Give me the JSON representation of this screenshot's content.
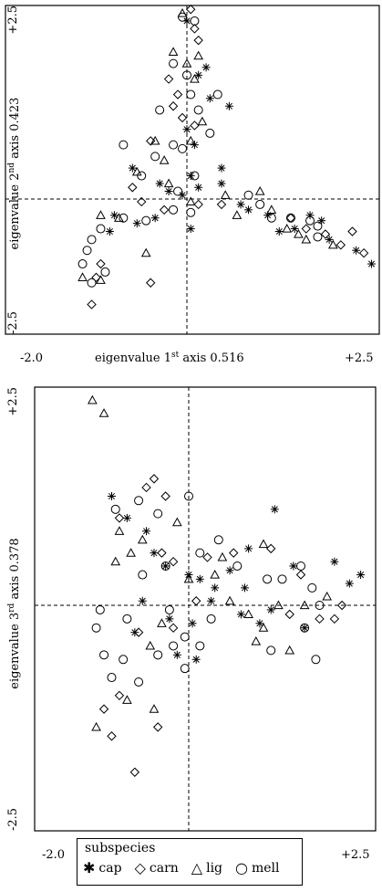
{
  "legend": {
    "title": "subspecies",
    "items": [
      {
        "symbol": "✱",
        "label": "cap"
      },
      {
        "symbol": "◇",
        "label": "carn"
      },
      {
        "symbol": "△",
        "label": "lig"
      },
      {
        "symbol": "○",
        "label": "mell"
      }
    ]
  },
  "chart_data": [
    {
      "type": "scatter",
      "xlabel": "eigenvalue 1st axis 0.516",
      "ylabel": "eigenvalue 2nd axis 0.423",
      "xlim": [
        -2.0,
        2.5
      ],
      "ylim": [
        -2.5,
        2.5
      ],
      "x_ticks": [
        "-2.0",
        "+2.5"
      ],
      "y_ticks": [
        "+2.5",
        "-2.5"
      ],
      "series": [
        {
          "name": "cap",
          "points": [
            [
              0,
              2.3
            ],
            [
              0.15,
              1.6
            ],
            [
              0.25,
              1.7
            ],
            [
              0.3,
              1.3
            ],
            [
              0.55,
              1.2
            ],
            [
              0.0,
              0.9
            ],
            [
              0.1,
              0.7
            ],
            [
              -0.6,
              0.4
            ],
            [
              -0.3,
              0.2
            ],
            [
              0.05,
              0.3
            ],
            [
              0.15,
              0.15
            ],
            [
              0.45,
              0.4
            ],
            [
              0.45,
              0.2
            ],
            [
              -0.8,
              -0.3
            ],
            [
              -0.55,
              -0.45
            ],
            [
              -0.35,
              -0.35
            ],
            [
              -0.05,
              0.05
            ],
            [
              0.05,
              -0.55
            ],
            [
              0.7,
              -0.1
            ],
            [
              0.8,
              -0.2
            ],
            [
              1.05,
              -0.3
            ],
            [
              1.2,
              -0.6
            ],
            [
              1.4,
              -0.55
            ],
            [
              1.6,
              -0.3
            ],
            [
              1.75,
              -0.4
            ],
            [
              1.85,
              -0.75
            ],
            [
              2.2,
              -0.95
            ],
            [
              2.4,
              -1.2
            ],
            [
              -0.85,
              -0.6
            ],
            [
              -0.2,
              0.1
            ]
          ]
        },
        {
          "name": "carn",
          "points": [
            [
              0.05,
              2.45
            ],
            [
              0.1,
              2.2
            ],
            [
              0.15,
              2.05
            ],
            [
              -0.2,
              1.55
            ],
            [
              -0.1,
              1.35
            ],
            [
              -0.15,
              1.2
            ],
            [
              -0.05,
              1.05
            ],
            [
              0.1,
              0.95
            ],
            [
              -0.4,
              0.75
            ],
            [
              -0.6,
              0.15
            ],
            [
              -0.5,
              -0.05
            ],
            [
              -0.25,
              -0.2
            ],
            [
              0.15,
              -0.1
            ],
            [
              0.45,
              -0.1
            ],
            [
              1.35,
              -0.35
            ],
            [
              1.55,
              -0.55
            ],
            [
              1.8,
              -0.65
            ],
            [
              2.0,
              -0.85
            ],
            [
              2.3,
              -1.0
            ],
            [
              2.15,
              -0.6
            ],
            [
              -1.0,
              -1.45
            ],
            [
              -0.4,
              -1.55
            ],
            [
              -1.05,
              -1.95
            ],
            [
              -0.95,
              -1.2
            ]
          ]
        },
        {
          "name": "lig",
          "points": [
            [
              -0.05,
              2.4
            ],
            [
              -0.15,
              1.9
            ],
            [
              0.0,
              1.75
            ],
            [
              0.1,
              1.55
            ],
            [
              0.15,
              1.85
            ],
            [
              -0.35,
              0.75
            ],
            [
              -0.55,
              0.35
            ],
            [
              -0.25,
              0.5
            ],
            [
              0.2,
              1.0
            ],
            [
              0.05,
              0.75
            ],
            [
              -0.95,
              -0.3
            ],
            [
              -0.75,
              -0.35
            ],
            [
              -0.2,
              0.2
            ],
            [
              0.05,
              -0.05
            ],
            [
              0.65,
              -0.3
            ],
            [
              0.5,
              0.05
            ],
            [
              0.95,
              0.1
            ],
            [
              1.1,
              -0.2
            ],
            [
              1.3,
              -0.55
            ],
            [
              1.45,
              -0.65
            ],
            [
              1.55,
              -0.75
            ],
            [
              1.9,
              -0.85
            ],
            [
              -0.95,
              -1.5
            ],
            [
              -1.15,
              -1.45
            ],
            [
              -0.45,
              -1.0
            ]
          ]
        },
        {
          "name": "mell",
          "points": [
            [
              -0.05,
              2.35
            ],
            [
              0.1,
              2.3
            ],
            [
              -0.15,
              1.75
            ],
            [
              0.0,
              1.6
            ],
            [
              0.05,
              1.35
            ],
            [
              -0.3,
              1.15
            ],
            [
              0.4,
              1.35
            ],
            [
              0.15,
              1.15
            ],
            [
              -0.7,
              0.7
            ],
            [
              -0.15,
              0.7
            ],
            [
              -0.05,
              0.65
            ],
            [
              -0.35,
              0.55
            ],
            [
              0.3,
              0.85
            ],
            [
              -0.5,
              0.3
            ],
            [
              0.1,
              0.3
            ],
            [
              -0.1,
              0.1
            ],
            [
              -0.7,
              -0.35
            ],
            [
              -0.45,
              -0.4
            ],
            [
              -0.15,
              -0.2
            ],
            [
              0.05,
              -0.25
            ],
            [
              0.8,
              0.05
            ],
            [
              0.95,
              -0.1
            ],
            [
              1.1,
              -0.35
            ],
            [
              1.35,
              -0.35
            ],
            [
              1.6,
              -0.4
            ],
            [
              1.7,
              -0.5
            ],
            [
              1.7,
              -0.7
            ],
            [
              -0.95,
              -0.55
            ],
            [
              -1.05,
              -0.75
            ],
            [
              -1.1,
              -0.95
            ],
            [
              -1.15,
              -1.2
            ],
            [
              -1.05,
              -1.55
            ],
            [
              -0.9,
              -1.35
            ]
          ]
        }
      ]
    },
    {
      "type": "scatter",
      "xlabel": "eigenvalue 1st axis 0.516",
      "ylabel": "eigenvalue 3rd axis 0.378",
      "xlim": [
        -2.0,
        2.5
      ],
      "ylim": [
        -2.5,
        2.5
      ],
      "x_ticks": [
        "-2.0",
        "+2.5"
      ],
      "y_ticks": [
        "+2.5",
        "-2.5"
      ],
      "series": [
        {
          "name": "cap",
          "points": [
            [
              -1.0,
              1.25
            ],
            [
              -0.8,
              1.0
            ],
            [
              -0.55,
              0.85
            ],
            [
              -0.45,
              0.6
            ],
            [
              -0.3,
              0.45
            ],
            [
              0.0,
              0.35
            ],
            [
              0.15,
              0.3
            ],
            [
              0.35,
              0.2
            ],
            [
              0.55,
              0.4
            ],
            [
              0.75,
              0.2
            ],
            [
              1.15,
              1.1
            ],
            [
              1.4,
              0.45
            ],
            [
              1.95,
              0.5
            ],
            [
              2.15,
              0.25
            ],
            [
              2.3,
              0.35
            ],
            [
              0.8,
              0.65
            ],
            [
              -0.7,
              -0.3
            ],
            [
              -0.6,
              0.05
            ],
            [
              -0.25,
              -0.15
            ],
            [
              0.05,
              -0.2
            ],
            [
              0.3,
              0.05
            ],
            [
              0.7,
              -0.1
            ],
            [
              0.95,
              -0.2
            ],
            [
              1.1,
              -0.05
            ],
            [
              1.55,
              -0.25
            ],
            [
              0.1,
              -0.6
            ],
            [
              -0.15,
              -0.55
            ]
          ]
        },
        {
          "name": "carn",
          "points": [
            [
              -0.9,
              1.0
            ],
            [
              -0.55,
              1.35
            ],
            [
              -0.45,
              1.45
            ],
            [
              -0.3,
              1.25
            ],
            [
              -0.35,
              0.6
            ],
            [
              -0.2,
              0.5
            ],
            [
              0.25,
              0.55
            ],
            [
              0.6,
              0.6
            ],
            [
              1.1,
              0.65
            ],
            [
              1.5,
              0.35
            ],
            [
              2.05,
              0.0
            ],
            [
              1.95,
              -0.15
            ],
            [
              1.75,
              -0.15
            ],
            [
              1.35,
              -0.1
            ],
            [
              -1.1,
              -1.15
            ],
            [
              -0.9,
              -1.0
            ],
            [
              -0.65,
              -0.3
            ],
            [
              -0.2,
              -0.25
            ],
            [
              0.1,
              0.05
            ],
            [
              -1.0,
              -1.45
            ],
            [
              -0.7,
              -1.85
            ],
            [
              -0.4,
              -1.35
            ]
          ]
        },
        {
          "name": "lig",
          "points": [
            [
              -1.25,
              2.35
            ],
            [
              -1.1,
              2.2
            ],
            [
              -0.95,
              0.5
            ],
            [
              -0.9,
              0.85
            ],
            [
              -0.75,
              0.6
            ],
            [
              -0.6,
              0.75
            ],
            [
              -0.15,
              0.95
            ],
            [
              0.0,
              0.3
            ],
            [
              0.35,
              0.35
            ],
            [
              0.55,
              0.05
            ],
            [
              0.8,
              -0.1
            ],
            [
              1.0,
              -0.25
            ],
            [
              1.2,
              0.0
            ],
            [
              1.55,
              0.0
            ],
            [
              1.35,
              -0.5
            ],
            [
              1.85,
              0.1
            ],
            [
              -0.5,
              -0.45
            ],
            [
              -0.35,
              -0.2
            ],
            [
              -0.8,
              -1.05
            ],
            [
              -0.45,
              -1.15
            ],
            [
              0.45,
              0.55
            ],
            [
              1.0,
              0.7
            ],
            [
              -1.2,
              -1.35
            ],
            [
              0.9,
              -0.4
            ]
          ]
        },
        {
          "name": "mell",
          "points": [
            [
              -0.95,
              1.1
            ],
            [
              -0.65,
              1.2
            ],
            [
              -0.4,
              1.05
            ],
            [
              0.0,
              1.25
            ],
            [
              -0.6,
              0.35
            ],
            [
              -0.3,
              0.45
            ],
            [
              0.15,
              0.6
            ],
            [
              0.4,
              0.75
            ],
            [
              0.65,
              0.45
            ],
            [
              1.05,
              0.3
            ],
            [
              1.25,
              0.3
            ],
            [
              1.5,
              0.45
            ],
            [
              1.65,
              0.2
            ],
            [
              1.75,
              0.0
            ],
            [
              1.55,
              -0.25
            ],
            [
              1.1,
              -0.5
            ],
            [
              1.7,
              -0.6
            ],
            [
              -1.2,
              -0.25
            ],
            [
              -1.1,
              -0.55
            ],
            [
              -1.0,
              -0.8
            ],
            [
              -0.85,
              -0.6
            ],
            [
              -0.65,
              -0.85
            ],
            [
              -0.4,
              -0.55
            ],
            [
              -0.2,
              -0.45
            ],
            [
              -0.05,
              -0.35
            ],
            [
              -0.05,
              -0.7
            ],
            [
              0.3,
              -0.15
            ],
            [
              0.15,
              -0.45
            ],
            [
              -1.15,
              -0.05
            ],
            [
              -0.8,
              -0.15
            ],
            [
              -0.25,
              -0.05
            ]
          ]
        }
      ]
    }
  ]
}
